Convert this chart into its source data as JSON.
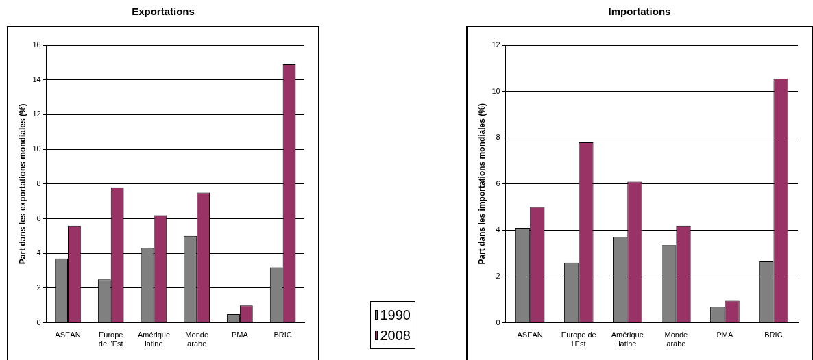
{
  "chart_data": [
    {
      "type": "bar",
      "title": "Exportations",
      "ylabel": "Part dans les exportations mondiales (%)",
      "categories": [
        "ASEAN",
        "Europe de l'Est",
        "Amérique latine",
        "Monde arabe",
        "PMA",
        "BRIC"
      ],
      "series": [
        {
          "name": "1990",
          "color": "#808080",
          "values": [
            3.7,
            2.5,
            4.3,
            5.0,
            0.5,
            3.2
          ]
        },
        {
          "name": "2008",
          "color": "#993366",
          "values": [
            5.6,
            7.8,
            6.2,
            7.5,
            1.0,
            14.9
          ]
        }
      ],
      "ylim": [
        0,
        16
      ],
      "yticks": [
        0,
        2,
        4,
        6,
        8,
        10,
        12,
        14,
        16
      ],
      "grid": "y",
      "legend": "bottom right"
    },
    {
      "type": "bar",
      "title": "Importations",
      "ylabel": "Part dans les importations mondiales (%)",
      "categories": [
        "ASEAN",
        "Europe de l'Est",
        "Amérique latine",
        "Monde arabe",
        "PMA",
        "BRIC"
      ],
      "series": [
        {
          "name": "1990",
          "color": "#808080",
          "values": [
            4.1,
            2.6,
            3.7,
            3.35,
            0.7,
            2.65
          ]
        },
        {
          "name": "2008",
          "color": "#993366",
          "values": [
            5.0,
            7.8,
            6.1,
            4.2,
            0.95,
            10.55
          ]
        }
      ],
      "ylim": [
        0,
        12
      ],
      "yticks": [
        0,
        2,
        4,
        6,
        8,
        10,
        12
      ],
      "grid": "y",
      "legend": "bottom left"
    }
  ]
}
